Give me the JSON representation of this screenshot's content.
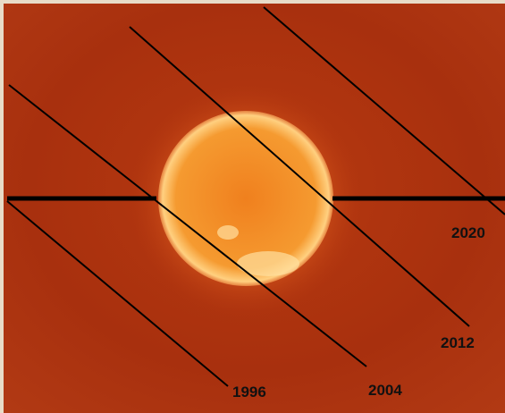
{
  "labels": [
    "1996",
    "2004",
    "2012",
    "2020"
  ]
}
